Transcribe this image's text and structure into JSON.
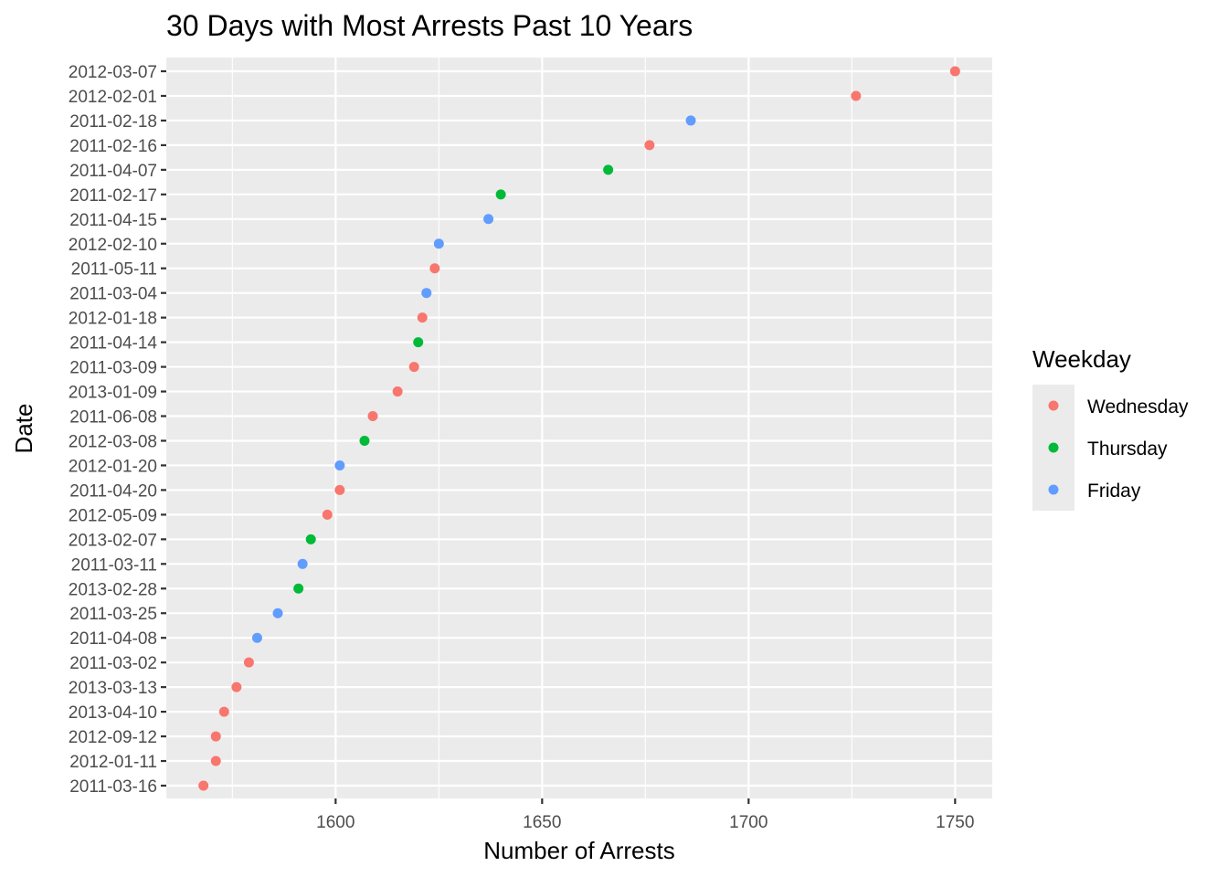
{
  "chart_data": {
    "type": "scatter",
    "title": "30 Days with Most Arrests Past 10 Years",
    "xlabel": "Number of Arrests",
    "ylabel": "Date",
    "xlim": [
      1559,
      1759
    ],
    "x_ticks": [
      1600,
      1650,
      1700,
      1750
    ],
    "grid": true,
    "legend": {
      "title": "Weekday",
      "position": "right",
      "entries": [
        {
          "label": "Wednesday",
          "color": "#f8766d"
        },
        {
          "label": "Thursday",
          "color": "#00ba38"
        },
        {
          "label": "Friday",
          "color": "#619cff"
        }
      ]
    },
    "points": [
      {
        "date": "2012-03-07",
        "arrests": 1750,
        "weekday": "Wednesday"
      },
      {
        "date": "2012-02-01",
        "arrests": 1726,
        "weekday": "Wednesday"
      },
      {
        "date": "2011-02-18",
        "arrests": 1686,
        "weekday": "Friday"
      },
      {
        "date": "2011-02-16",
        "arrests": 1676,
        "weekday": "Wednesday"
      },
      {
        "date": "2011-04-07",
        "arrests": 1666,
        "weekday": "Thursday"
      },
      {
        "date": "2011-02-17",
        "arrests": 1640,
        "weekday": "Thursday"
      },
      {
        "date": "2011-04-15",
        "arrests": 1637,
        "weekday": "Friday"
      },
      {
        "date": "2012-02-10",
        "arrests": 1625,
        "weekday": "Friday"
      },
      {
        "date": "2011-05-11",
        "arrests": 1624,
        "weekday": "Wednesday"
      },
      {
        "date": "2011-03-04",
        "arrests": 1622,
        "weekday": "Friday"
      },
      {
        "date": "2012-01-18",
        "arrests": 1621,
        "weekday": "Wednesday"
      },
      {
        "date": "2011-04-14",
        "arrests": 1620,
        "weekday": "Thursday"
      },
      {
        "date": "2011-03-09",
        "arrests": 1619,
        "weekday": "Wednesday"
      },
      {
        "date": "2013-01-09",
        "arrests": 1615,
        "weekday": "Wednesday"
      },
      {
        "date": "2011-06-08",
        "arrests": 1609,
        "weekday": "Wednesday"
      },
      {
        "date": "2012-03-08",
        "arrests": 1607,
        "weekday": "Thursday"
      },
      {
        "date": "2012-01-20",
        "arrests": 1601,
        "weekday": "Friday"
      },
      {
        "date": "2011-04-20",
        "arrests": 1601,
        "weekday": "Wednesday"
      },
      {
        "date": "2012-05-09",
        "arrests": 1598,
        "weekday": "Wednesday"
      },
      {
        "date": "2013-02-07",
        "arrests": 1594,
        "weekday": "Thursday"
      },
      {
        "date": "2011-03-11",
        "arrests": 1592,
        "weekday": "Friday"
      },
      {
        "date": "2013-02-28",
        "arrests": 1591,
        "weekday": "Thursday"
      },
      {
        "date": "2011-03-25",
        "arrests": 1586,
        "weekday": "Friday"
      },
      {
        "date": "2011-04-08",
        "arrests": 1581,
        "weekday": "Friday"
      },
      {
        "date": "2011-03-02",
        "arrests": 1579,
        "weekday": "Wednesday"
      },
      {
        "date": "2013-03-13",
        "arrests": 1576,
        "weekday": "Wednesday"
      },
      {
        "date": "2013-04-10",
        "arrests": 1573,
        "weekday": "Wednesday"
      },
      {
        "date": "2012-09-12",
        "arrests": 1571,
        "weekday": "Wednesday"
      },
      {
        "date": "2012-01-11",
        "arrests": 1571,
        "weekday": "Wednesday"
      },
      {
        "date": "2011-03-16",
        "arrests": 1568,
        "weekday": "Wednesday"
      }
    ]
  }
}
